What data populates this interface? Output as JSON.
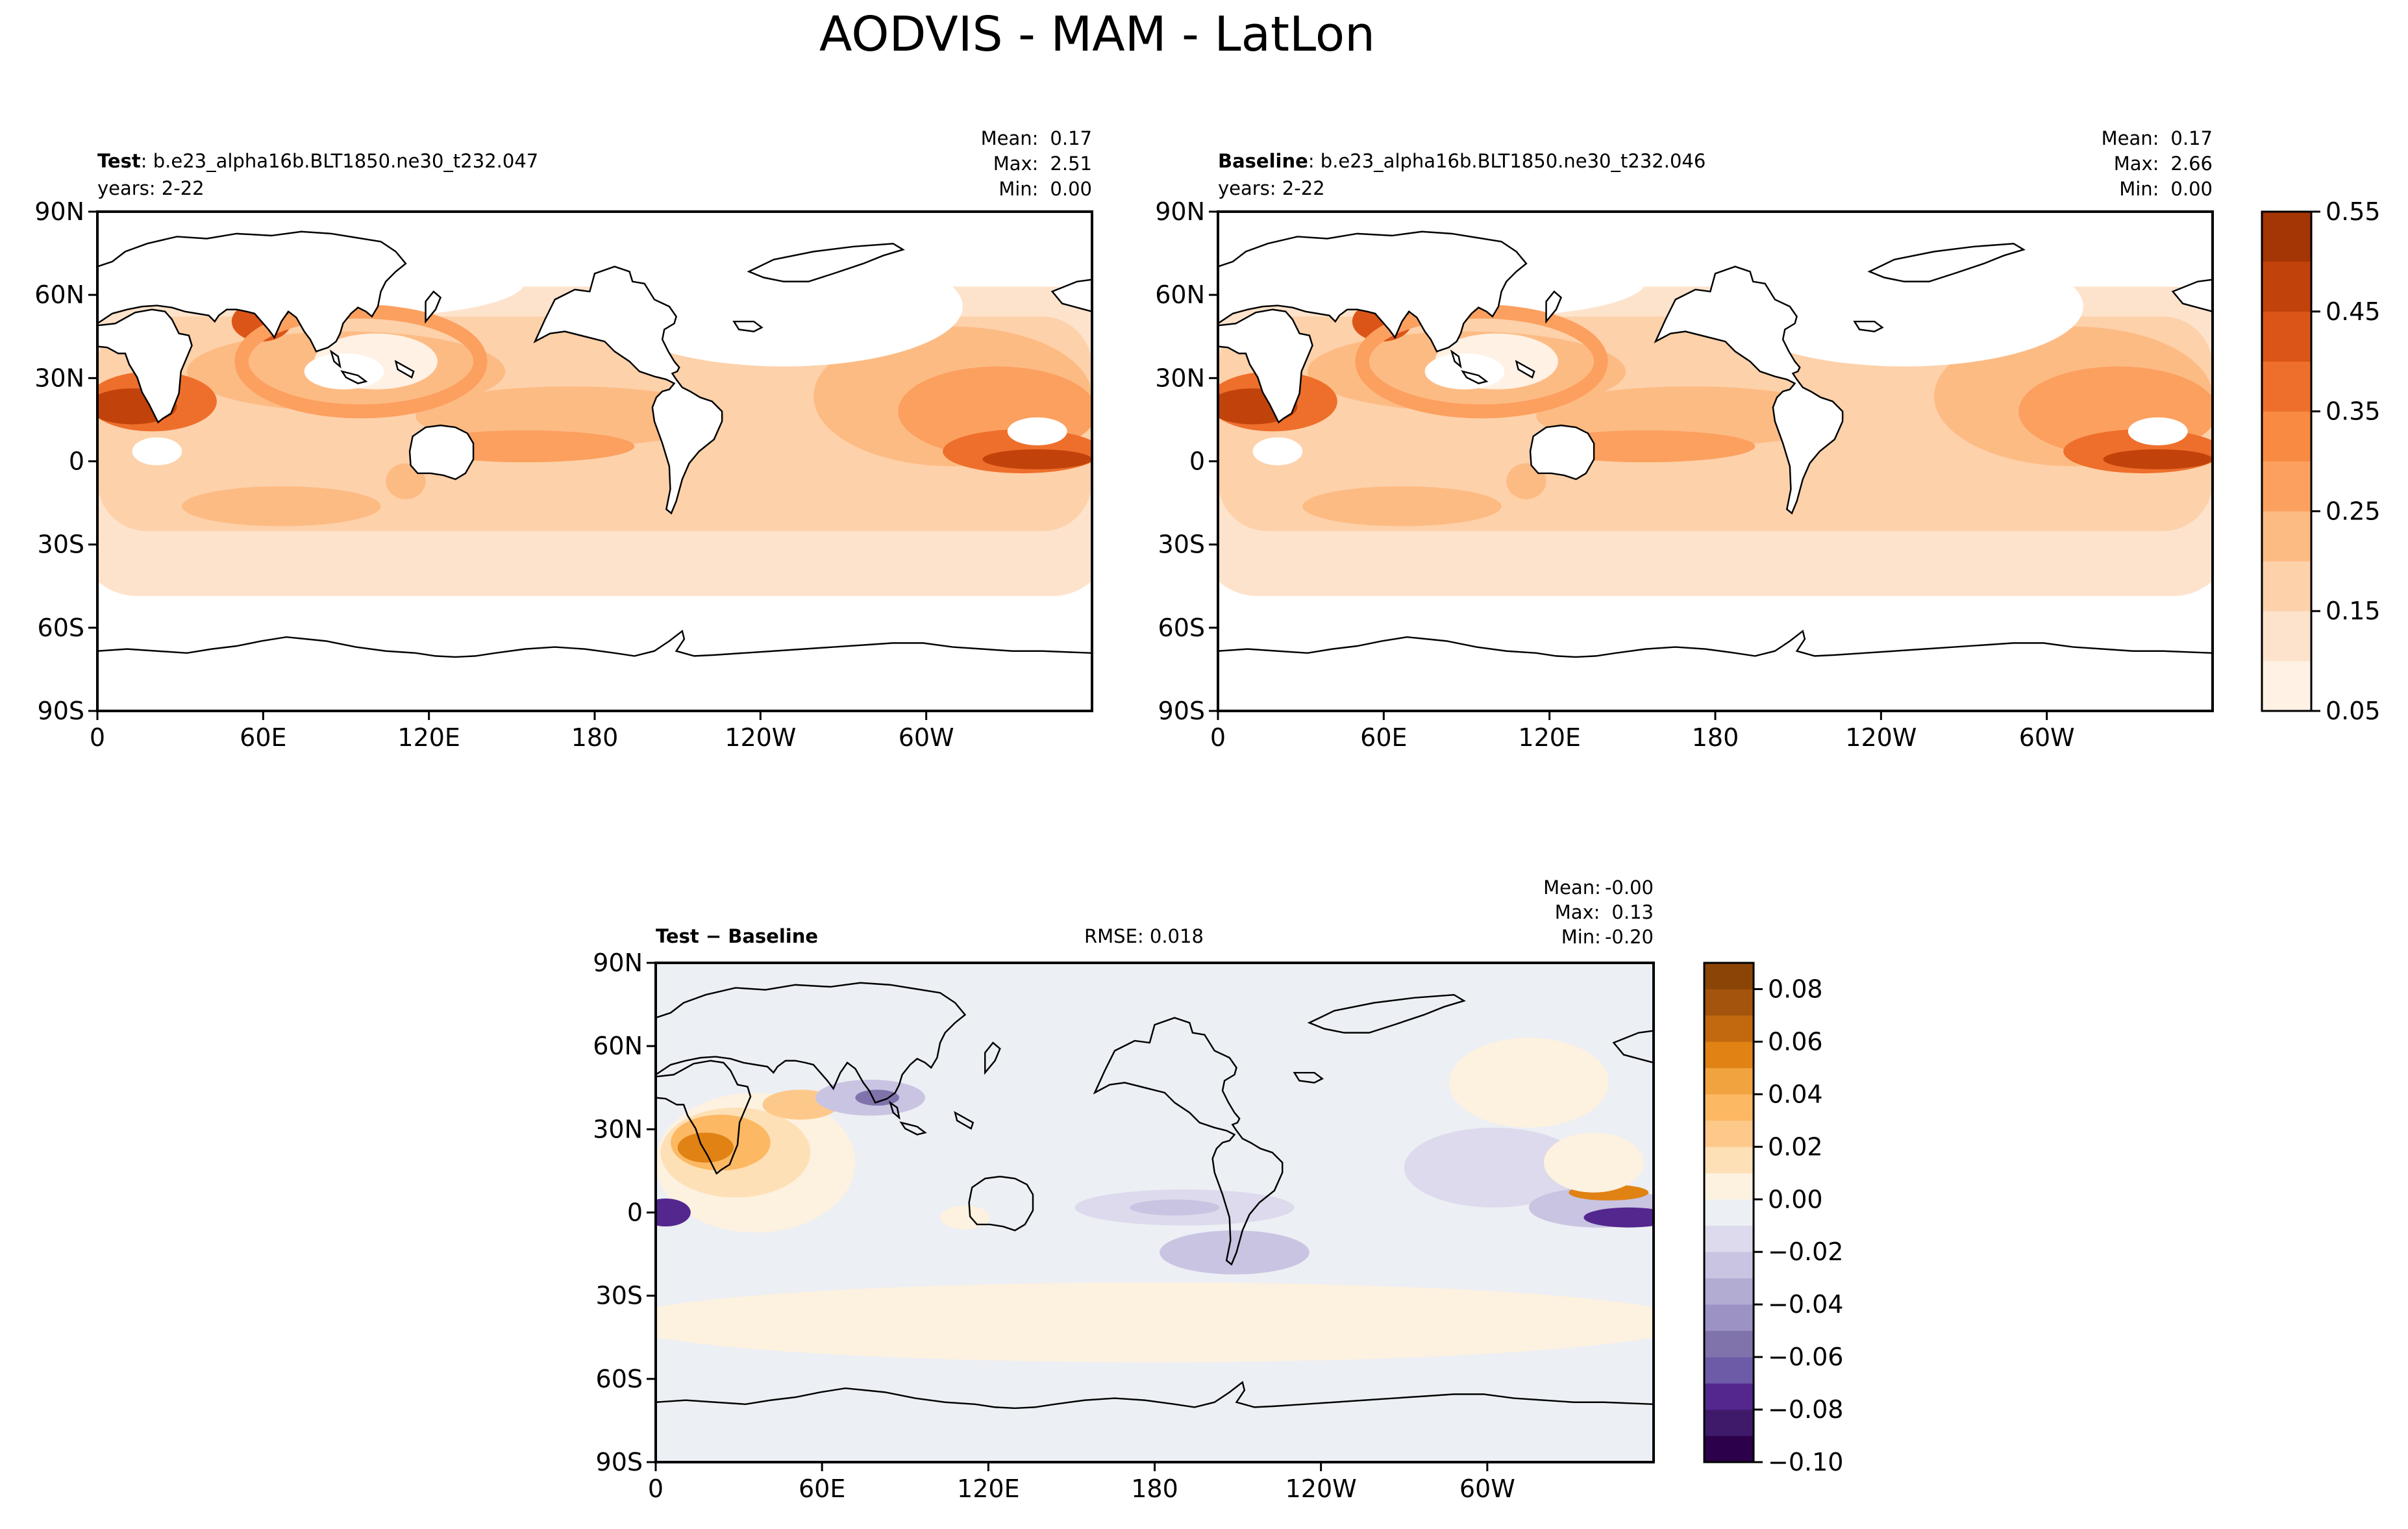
{
  "chart_data": {
    "type": "contour-map",
    "title": "AODVIS - MAM - LatLon",
    "panels": [
      {
        "id": "test",
        "label_bold": "Test",
        "label_rest": ": b.e23_alpha16b.BLT1850.ne30_t232.047",
        "years": "years: 2-22",
        "stats": [
          {
            "name": "Mean:",
            "value": "0.17"
          },
          {
            "name": "Max:",
            "value": "2.51"
          },
          {
            "name": "Min:",
            "value": "0.00"
          }
        ]
      },
      {
        "id": "baseline",
        "label_bold": "Baseline",
        "label_rest": ": b.e23_alpha16b.BLT1850.ne30_t232.046",
        "years": "years: 2-22",
        "stats": [
          {
            "name": "Mean:",
            "value": "0.17"
          },
          {
            "name": "Max:",
            "value": "2.66"
          },
          {
            "name": "Min:",
            "value": "0.00"
          }
        ]
      },
      {
        "id": "diff",
        "label_bold": "Test − Baseline",
        "rmse": "RMSE: 0.018",
        "stats": [
          {
            "name": "Mean:",
            "value": "-0.00"
          },
          {
            "name": "Max:",
            "value": "0.13"
          },
          {
            "name": "Min:",
            "value": "-0.20"
          }
        ]
      }
    ],
    "lat_ticks": [
      "90N",
      "60N",
      "30N",
      "0",
      "30S",
      "60S",
      "90S"
    ],
    "lon_ticks": [
      "0",
      "60E",
      "120E",
      "180",
      "120W",
      "60W"
    ],
    "colorbar_abs": {
      "ticks": [
        "0.55",
        "0.45",
        "0.35",
        "0.25",
        "0.15",
        "0.05"
      ],
      "levels": [
        0.05,
        0.1,
        0.15,
        0.2,
        0.25,
        0.3,
        0.35,
        0.4,
        0.45,
        0.5,
        0.55
      ],
      "colors": [
        "#fff1e4",
        "#fee3cc",
        "#fdd1aa",
        "#fdbb84",
        "#fca05f",
        "#f88a42",
        "#ee6f2b",
        "#dc5518",
        "#c1430b",
        "#a43505",
        "#842b04"
      ]
    },
    "colorbar_diff": {
      "ticks": [
        "0.08",
        "0.06",
        "0.04",
        "0.02",
        "0.00",
        "−0.02",
        "−0.04",
        "−0.06",
        "−0.08",
        "−0.10"
      ],
      "levels": [
        -0.1,
        -0.09,
        -0.08,
        -0.07,
        -0.06,
        -0.05,
        -0.04,
        -0.03,
        -0.02,
        -0.01,
        0.0,
        0.01,
        0.02,
        0.03,
        0.04,
        0.05,
        0.06,
        0.07,
        0.08,
        0.09
      ],
      "colors": [
        "#2d004b",
        "#3f1a6b",
        "#54278f",
        "#6e5ba8",
        "#8073ac",
        "#9c92c4",
        "#b2abd2",
        "#c9c4e2",
        "#dcdaec",
        "#eceff4",
        "#fdf1e0",
        "#fee0b6",
        "#fdc98a",
        "#fdb863",
        "#f1a340",
        "#e08214",
        "#c26910",
        "#a4540d",
        "#8a4506"
      ]
    }
  }
}
